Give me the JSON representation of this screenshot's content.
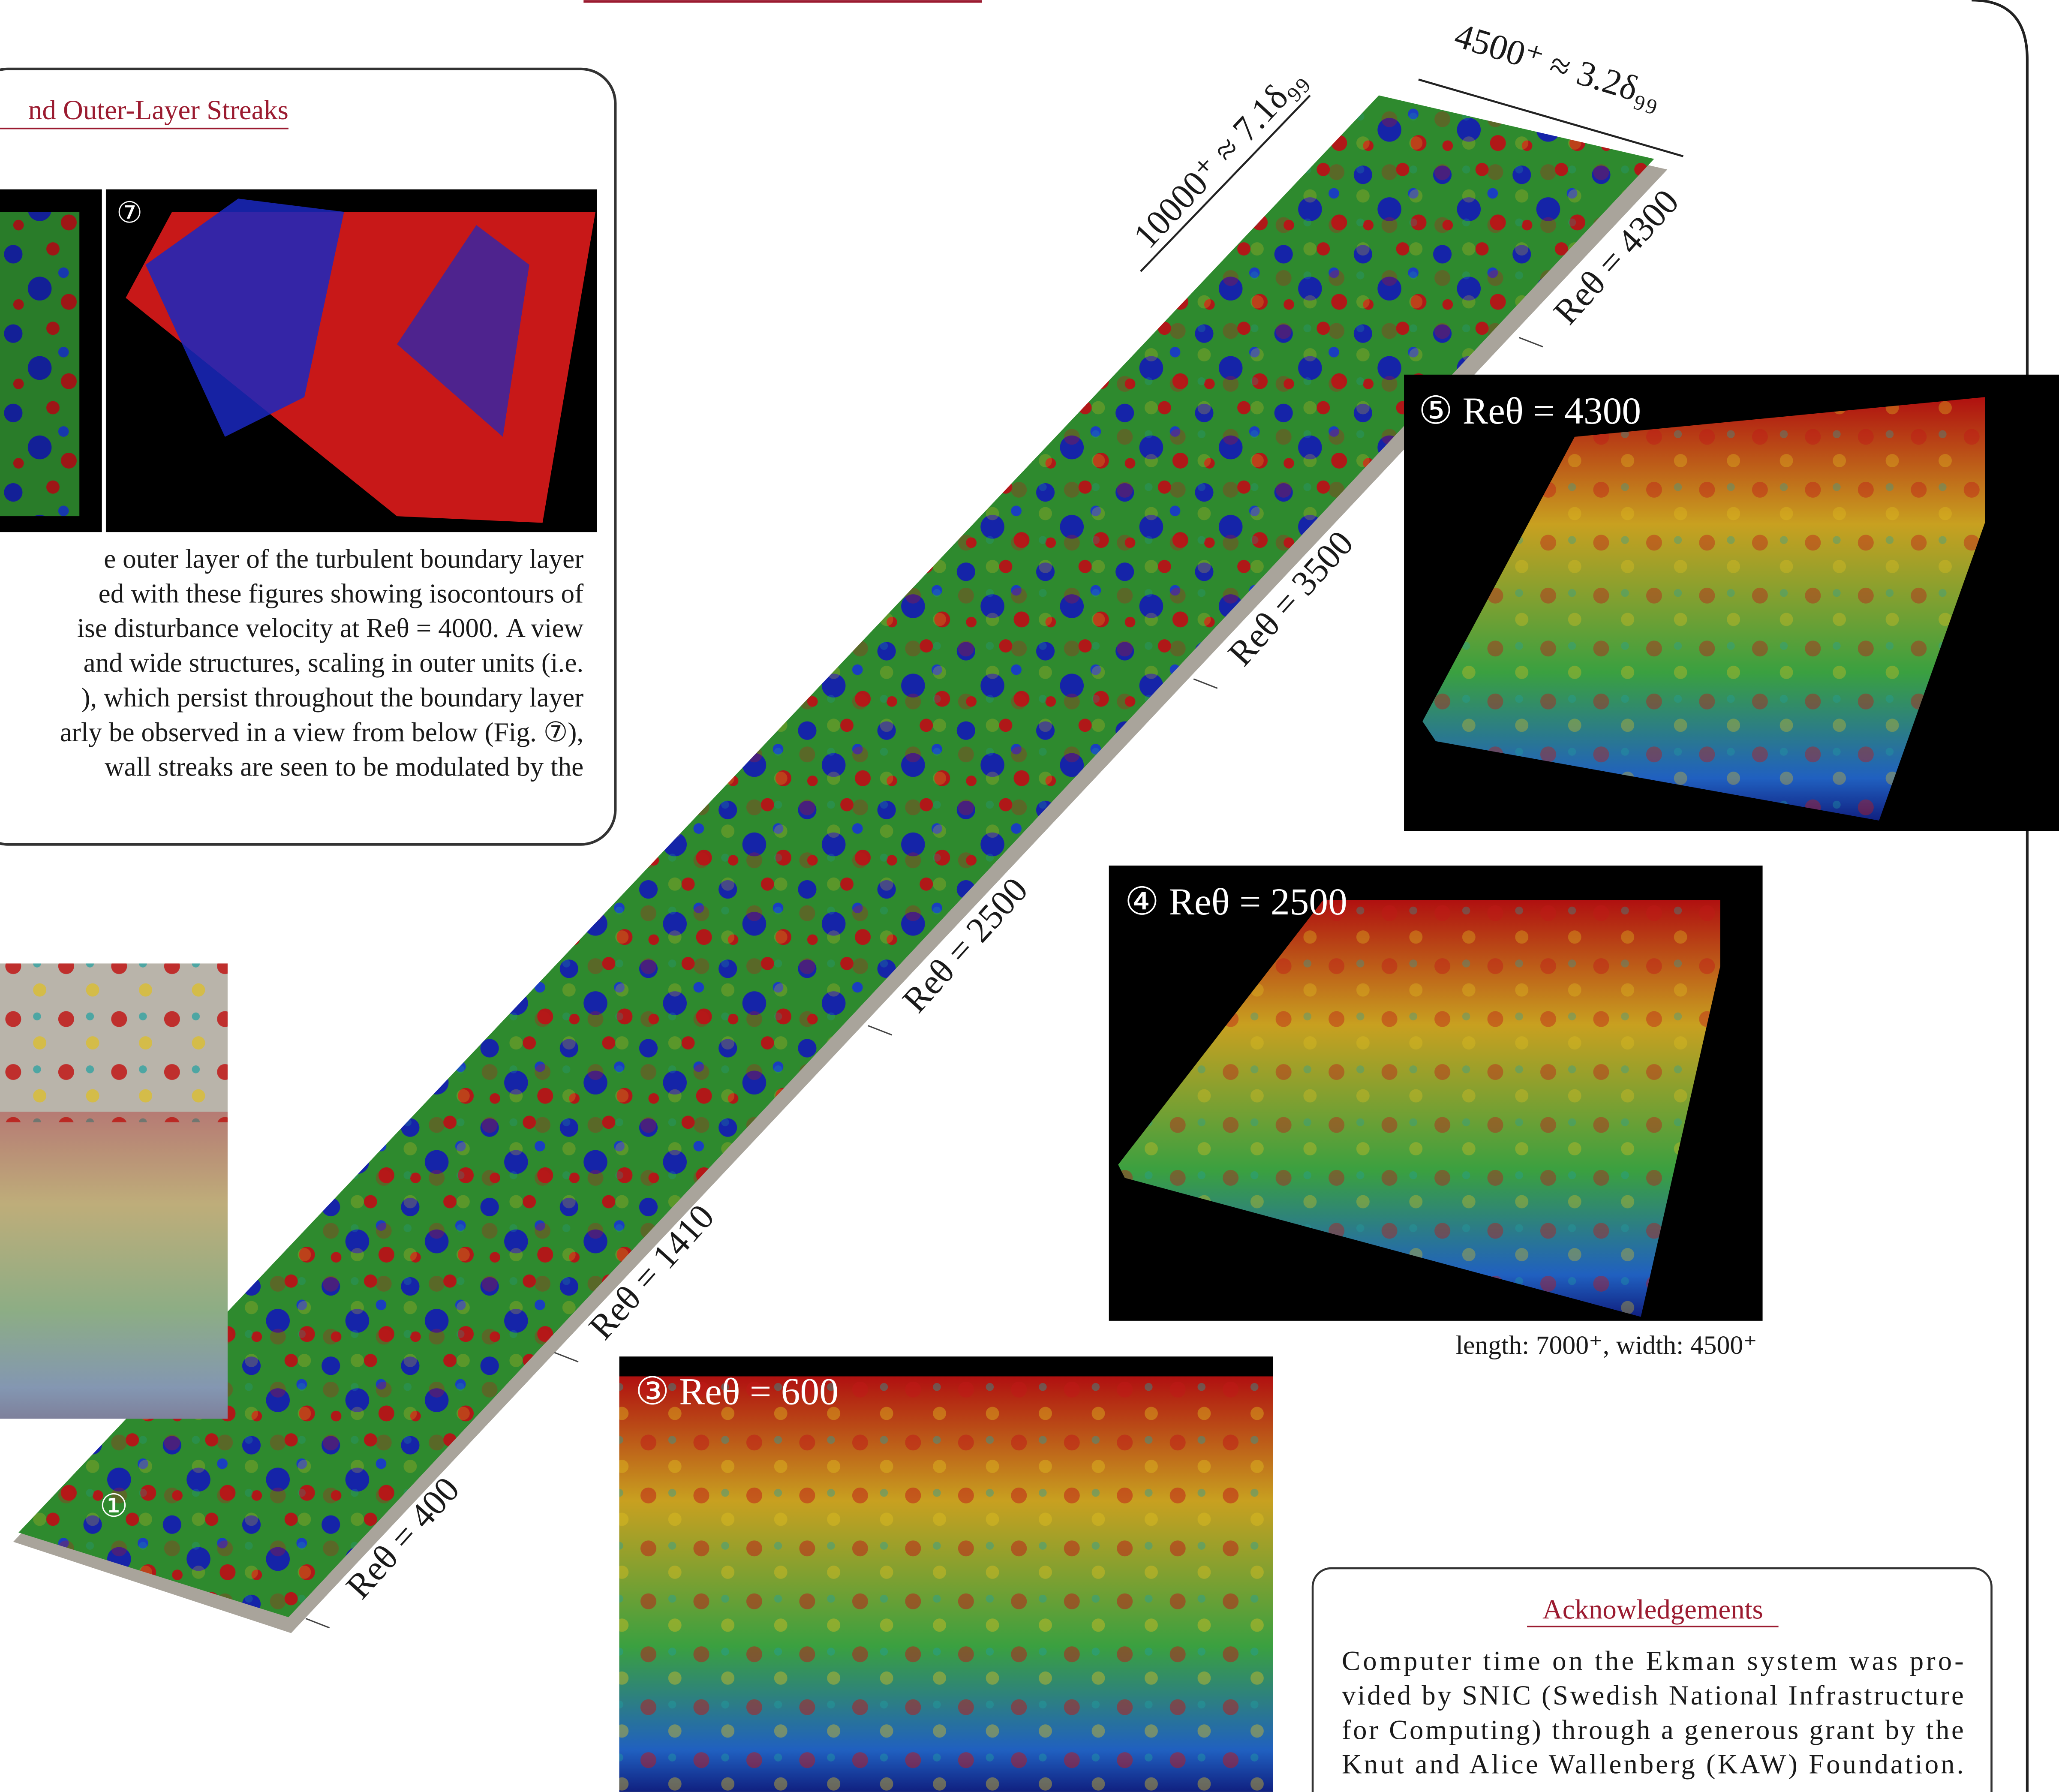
{
  "outer_box": {
    "title": "nd Outer-Layer Streaks",
    "figure_label": "⑦",
    "paragraph": [
      "e outer layer of the turbulent boundary layer",
      "ed with these figures showing isocontours of",
      "ise disturbance velocity at Reθ = 4000. A view",
      "and wide structures, scaling in outer units (i.e.",
      "), which persist throughout the boundary layer",
      "arly be observed in a view from below (Fig. ⑦),",
      "wall streaks are seen to be modulated by the"
    ]
  },
  "domain": {
    "length_label": "10000⁺ ≈ 7.1δ₉₉",
    "width_label": "4500⁺ ≈ 3.2δ₉₉",
    "stations": [
      "Reθ = 4300",
      "Reθ = 3500",
      "Reθ = 2500",
      "Reθ = 1410",
      "Reθ = 400"
    ],
    "start_label": "①"
  },
  "panels": [
    "⑤ Reθ = 4300",
    "④ Reθ = 2500",
    "③ Reθ = 600"
  ],
  "panel_caption": "length: 7000⁺, width: 4500⁺",
  "acknowledgements": {
    "title": "Acknowledgements",
    "lines": [
      "Computer time on the Ekman system was pro-",
      "vided by SNIC (Swedish National Infrastructure",
      "for Computing) through a generous grant by the",
      "Knut and Alice Wallenberg (KAW) Foundation."
    ]
  }
}
